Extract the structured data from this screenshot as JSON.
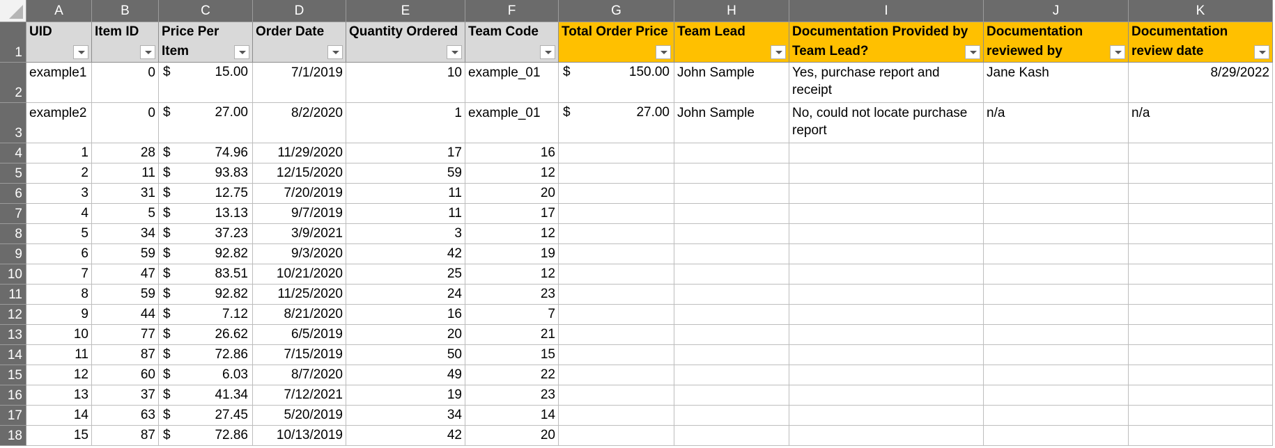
{
  "column_letters": [
    "A",
    "B",
    "C",
    "D",
    "E",
    "F",
    "G",
    "H",
    "I",
    "J",
    "K"
  ],
  "headers": [
    {
      "label": "UID",
      "style": "gray"
    },
    {
      "label": "Item ID",
      "style": "gray"
    },
    {
      "label": "Price Per Item",
      "style": "gray"
    },
    {
      "label": "Order Date",
      "style": "gray"
    },
    {
      "label": "Quantity Ordered",
      "style": "gray"
    },
    {
      "label": "Team Code",
      "style": "gray"
    },
    {
      "label": "Total Order Price",
      "style": "gold"
    },
    {
      "label": "Team Lead",
      "style": "gold"
    },
    {
      "label": "Documentation Provided by Team Lead?",
      "style": "gold"
    },
    {
      "label": "Documentation reviewed by",
      "style": "gold"
    },
    {
      "label": "Documentation review date",
      "style": "gold"
    }
  ],
  "header_row_number": "1",
  "rows": [
    {
      "row_num": "2",
      "tall": true,
      "cells": [
        "example1",
        "0",
        "15.00",
        "7/1/2019",
        "10",
        "example_01",
        "150.00",
        "John Sample",
        "Yes, purchase report and receipt",
        "Jane Kash",
        "8/29/2022"
      ]
    },
    {
      "row_num": "3",
      "tall": true,
      "cells": [
        "example2",
        "0",
        "27.00",
        "8/2/2020",
        "1",
        "example_01",
        "27.00",
        "John Sample",
        "No, could not locate purchase report",
        "n/a",
        "n/a"
      ]
    },
    {
      "row_num": "4",
      "cells": [
        "1",
        "28",
        "74.96",
        "11/29/2020",
        "17",
        "16",
        "",
        "",
        "",
        "",
        ""
      ]
    },
    {
      "row_num": "5",
      "cells": [
        "2",
        "11",
        "93.83",
        "12/15/2020",
        "59",
        "12",
        "",
        "",
        "",
        "",
        ""
      ]
    },
    {
      "row_num": "6",
      "cells": [
        "3",
        "31",
        "12.75",
        "7/20/2019",
        "11",
        "20",
        "",
        "",
        "",
        "",
        ""
      ]
    },
    {
      "row_num": "7",
      "cells": [
        "4",
        "5",
        "13.13",
        "9/7/2019",
        "11",
        "17",
        "",
        "",
        "",
        "",
        ""
      ]
    },
    {
      "row_num": "8",
      "cells": [
        "5",
        "34",
        "37.23",
        "3/9/2021",
        "3",
        "12",
        "",
        "",
        "",
        "",
        ""
      ]
    },
    {
      "row_num": "9",
      "cells": [
        "6",
        "59",
        "92.82",
        "9/3/2020",
        "42",
        "19",
        "",
        "",
        "",
        "",
        ""
      ]
    },
    {
      "row_num": "10",
      "cells": [
        "7",
        "47",
        "83.51",
        "10/21/2020",
        "25",
        "12",
        "",
        "",
        "",
        "",
        ""
      ]
    },
    {
      "row_num": "11",
      "cells": [
        "8",
        "59",
        "92.82",
        "11/25/2020",
        "24",
        "23",
        "",
        "",
        "",
        "",
        ""
      ]
    },
    {
      "row_num": "12",
      "cells": [
        "9",
        "44",
        "7.12",
        "8/21/2020",
        "16",
        "7",
        "",
        "",
        "",
        "",
        ""
      ]
    },
    {
      "row_num": "13",
      "cells": [
        "10",
        "77",
        "26.62",
        "6/5/2019",
        "20",
        "21",
        "",
        "",
        "",
        "",
        ""
      ]
    },
    {
      "row_num": "14",
      "cells": [
        "11",
        "87",
        "72.86",
        "7/15/2019",
        "50",
        "15",
        "",
        "",
        "",
        "",
        ""
      ]
    },
    {
      "row_num": "15",
      "cells": [
        "12",
        "60",
        "6.03",
        "8/7/2020",
        "49",
        "22",
        "",
        "",
        "",
        "",
        ""
      ]
    },
    {
      "row_num": "16",
      "cells": [
        "13",
        "37",
        "41.34",
        "7/12/2021",
        "19",
        "23",
        "",
        "",
        "",
        "",
        ""
      ]
    },
    {
      "row_num": "17",
      "cells": [
        "14",
        "63",
        "27.45",
        "5/20/2019",
        "34",
        "14",
        "",
        "",
        "",
        "",
        ""
      ]
    },
    {
      "row_num": "18",
      "cells": [
        "15",
        "87",
        "72.86",
        "10/13/2019",
        "42",
        "20",
        "",
        "",
        "",
        "",
        ""
      ]
    }
  ],
  "currency_symbol": "$",
  "colors": {
    "header_gray": "#d9d9d9",
    "header_gold": "#ffc000",
    "row_col_header_bg": "#6b6b6b"
  }
}
